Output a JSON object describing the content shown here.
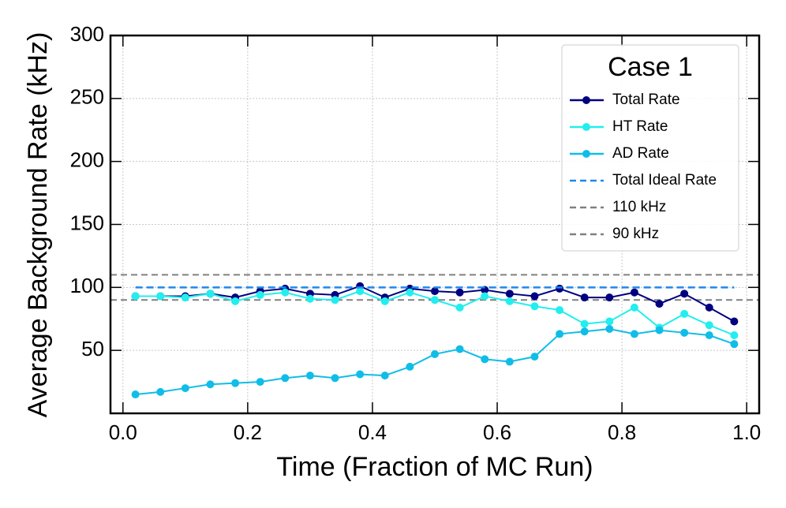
{
  "chart_data": {
    "type": "line",
    "xlabel": "Time (Fraction of MC Run)",
    "ylabel": "Average Background Rate (kHz)",
    "legend_title": "Case 1",
    "legend": "upper right",
    "grid": true,
    "xlim": [
      -0.02,
      1.02
    ],
    "ylim": [
      0,
      300
    ],
    "xticks": [
      {
        "value": 0,
        "label": "0.0"
      },
      0.2,
      0.4,
      0.6,
      0.8,
      {
        "value": 1,
        "label": "1.0"
      }
    ],
    "yticks": [
      50,
      100,
      150,
      200,
      250,
      300
    ],
    "x": [
      0.02,
      0.06,
      0.1,
      0.14,
      0.18,
      0.22,
      0.26,
      0.3,
      0.34,
      0.38,
      0.42,
      0.46,
      0.5,
      0.54,
      0.58,
      0.62,
      0.66,
      0.7,
      0.74,
      0.78,
      0.82,
      0.86,
      0.9,
      0.94,
      0.98
    ],
    "series": [
      {
        "name": "Total Rate",
        "color": "#000080",
        "marker": true,
        "dashed": false,
        "values": [
          93,
          93,
          93,
          95,
          92,
          97,
          99,
          95,
          94,
          101,
          92,
          99,
          97,
          96,
          98,
          95,
          93,
          99,
          92,
          92,
          96,
          87,
          95,
          84,
          73
        ]
      },
      {
        "name": "HT Rate",
        "color": "#22eeee",
        "marker": true,
        "dashed": false,
        "values": [
          93,
          93,
          92,
          95,
          89,
          94,
          96,
          91,
          90,
          97,
          89,
          96,
          90,
          84,
          93,
          89,
          85,
          82,
          71,
          73,
          84,
          68,
          79,
          70,
          62
        ]
      },
      {
        "name": "AD Rate",
        "color": "#10bde8",
        "marker": true,
        "dashed": false,
        "values": [
          15,
          17,
          20,
          23,
          24,
          25,
          28,
          30,
          28,
          31,
          30,
          37,
          47,
          51,
          43,
          41,
          45,
          63,
          65,
          67,
          63,
          66,
          64,
          62,
          55
        ]
      },
      {
        "name": "Total Ideal Rate",
        "color": "#1e88ee",
        "marker": false,
        "dashed": true,
        "values": [
          100,
          100,
          100,
          100,
          100,
          100,
          100,
          100,
          100,
          100,
          100,
          100,
          100,
          100,
          100,
          100,
          100,
          100,
          100,
          100,
          100,
          100,
          100,
          100,
          100
        ]
      }
    ],
    "hlines": [
      {
        "name": "110 kHz",
        "value": 110,
        "color": "#808080"
      },
      {
        "name": "90 kHz",
        "value": 90,
        "color": "#808080"
      }
    ]
  }
}
